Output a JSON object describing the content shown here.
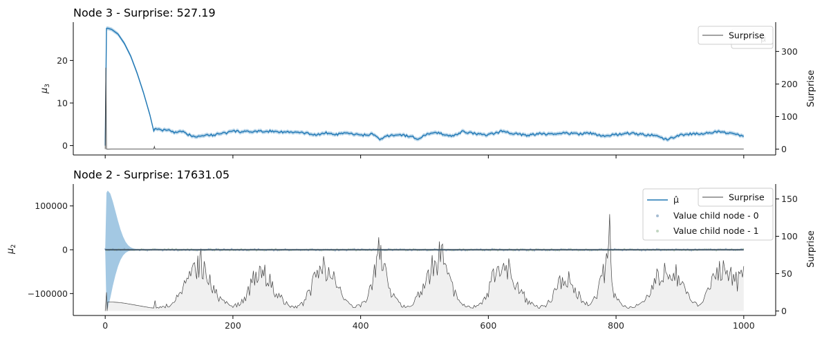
{
  "chart_data": [
    {
      "type": "line",
      "title": "Node 3 - Surprise: 527.19",
      "ylabel": "μ3",
      "ylabel_sub": "3",
      "y2label": "Surprise",
      "xlim": [
        -50,
        1050
      ],
      "ylim": [
        -2.2,
        29
      ],
      "y_ticks": [
        0,
        10,
        20
      ],
      "y_tick_labels": [
        "0",
        "10",
        "20"
      ],
      "y2lim": [
        -18,
        390
      ],
      "y2_ticks": [
        0,
        100,
        200,
        300
      ],
      "y2_tick_labels": [
        "0",
        "100",
        "200",
        "300"
      ],
      "x_ticks": [
        0,
        200,
        400,
        600,
        800,
        1000
      ],
      "show_x_tick_labels": false,
      "legend_left": {
        "labels": [
          "μ̂"
        ],
        "position": "top-right"
      },
      "legend_right": {
        "labels": [
          "Surprise"
        ],
        "position": "top-right"
      },
      "series": [
        {
          "name": "μ̂",
          "color": "#1f77b4",
          "x": [
            0,
            1,
            3,
            10,
            20,
            30,
            40,
            50,
            60,
            70,
            77,
            78,
            90,
            100,
            110,
            120,
            130,
            140,
            150,
            160,
            170,
            180,
            190,
            200,
            220,
            240,
            260,
            280,
            300,
            320,
            330,
            345,
            360,
            380,
            400,
            420,
            430,
            440,
            460,
            480,
            490,
            500,
            520,
            530,
            545,
            560,
            580,
            600,
            620,
            640,
            660,
            680,
            700,
            720,
            740,
            760,
            780,
            790,
            800,
            820,
            840,
            860,
            880,
            900,
            920,
            940,
            960,
            980,
            1000
          ],
          "values": [
            0,
            27.5,
            27.6,
            27.3,
            26.2,
            24.0,
            21.0,
            17.0,
            12.4,
            7.2,
            2.8,
            4.0,
            3.6,
            3.7,
            3.0,
            3.3,
            2.6,
            2.2,
            2.3,
            2.6,
            2.4,
            2.9,
            3.0,
            3.4,
            3.2,
            3.3,
            3.4,
            3.2,
            3.1,
            2.8,
            2.5,
            3.0,
            2.6,
            2.9,
            2.4,
            2.7,
            1.3,
            2.2,
            2.6,
            2.1,
            1.6,
            2.5,
            3.0,
            2.7,
            2.2,
            3.3,
            2.8,
            2.5,
            3.3,
            2.9,
            2.4,
            2.8,
            2.6,
            3.0,
            2.7,
            2.9,
            2.3,
            2.5,
            2.6,
            2.9,
            2.6,
            2.4,
            1.4,
            2.5,
            2.8,
            2.9,
            3.3,
            2.8,
            2.3
          ],
          "band": 0.45
        },
        {
          "name": "Surprise",
          "color": "#444444",
          "axis": "right",
          "x": [
            0,
            1,
            2,
            3,
            5,
            10,
            40,
            76,
            77,
            78,
            100,
            200,
            300,
            400,
            500,
            600,
            700,
            800,
            900,
            1000
          ],
          "values": [
            0,
            250,
            0,
            0.3,
            0.3,
            0.4,
            0.4,
            0.5,
            8,
            0.5,
            0.5,
            0.5,
            0.5,
            0.5,
            0.5,
            0.5,
            0.5,
            0.5,
            0.5,
            0.5
          ]
        }
      ]
    },
    {
      "type": "line",
      "title": "Node 2 - Surprise: 17631.05",
      "ylabel": "μ2",
      "ylabel_sub": "2",
      "y2label": "Surprise",
      "xlim": [
        -50,
        1050
      ],
      "ylim": [
        -150000,
        150000
      ],
      "y_ticks": [
        -100000,
        0,
        100000
      ],
      "y_tick_labels": [
        "−100000",
        "0",
        "100000"
      ],
      "y2lim": [
        -6,
        170
      ],
      "y2_ticks": [
        0,
        50,
        100,
        150
      ],
      "y2_tick_labels": [
        "0",
        "50",
        "100",
        "150"
      ],
      "x_ticks": [
        0,
        200,
        400,
        600,
        800,
        1000
      ],
      "x_tick_labels": [
        "0",
        "200",
        "400",
        "600",
        "800",
        "1000"
      ],
      "legend_left": {
        "labels": [
          "μ̂",
          "Value child node - 0",
          "Value child node - 1"
        ],
        "position": "top-right"
      },
      "legend_right": {
        "labels": [
          "Surprise"
        ],
        "position": "top-right"
      },
      "series": [
        {
          "name": "μ̂",
          "color": "#1f77b4",
          "x": [
            0,
            1000
          ],
          "values": [
            0,
            0
          ]
        },
        {
          "name": "Value child node - 0",
          "color": "#7f9fbf",
          "type": "scatter"
        },
        {
          "name": "Value child node - 1",
          "color": "#a8c4a8",
          "type": "scatter"
        },
        {
          "name": "uncertainty band",
          "color": "#9ec5e1",
          "x": [
            0,
            2,
            4,
            8,
            12,
            16,
            20,
            24,
            28,
            32,
            36,
            40,
            44,
            48,
            52,
            56,
            60
          ],
          "upper": [
            0,
            130000,
            135000,
            128000,
            110000,
            88000,
            66000,
            46000,
            30000,
            18000,
            10000,
            5500,
            3000,
            1600,
            900,
            500,
            0
          ],
          "lower": [
            0,
            -136000,
            -134000,
            -110000,
            -82000,
            -58000,
            -38000,
            -23000,
            -13000,
            -7000,
            -3500,
            -1600,
            -700,
            -300,
            -100,
            -40,
            0
          ]
        },
        {
          "name": "Surprise",
          "color": "#404040",
          "axis": "right",
          "x": [
            0,
            2,
            3,
            4,
            10,
            20,
            30,
            40,
            50,
            60,
            70,
            76,
            78,
            80,
            90,
            100,
            110,
            120,
            130,
            140,
            145,
            150,
            155,
            160,
            170,
            180,
            190,
            200,
            210,
            220,
            230,
            240,
            245,
            250,
            260,
            270,
            280,
            290,
            300,
            310,
            320,
            330,
            340,
            350,
            360,
            370,
            380,
            390,
            400,
            410,
            420,
            425,
            430,
            435,
            440,
            450,
            460,
            470,
            480,
            490,
            500,
            510,
            520,
            525,
            530,
            540,
            550,
            560,
            570,
            580,
            590,
            600,
            610,
            620,
            630,
            640,
            650,
            660,
            670,
            680,
            690,
            700,
            710,
            720,
            730,
            740,
            750,
            760,
            770,
            780,
            785,
            790,
            792,
            795,
            800,
            810,
            820,
            830,
            840,
            850,
            860,
            870,
            880,
            890,
            900,
            910,
            920,
            930,
            940,
            950,
            960,
            970,
            980,
            990,
            1000
          ],
          "values": [
            0,
            25,
            0,
            12,
            12,
            11.5,
            10.5,
            9,
            7.5,
            6,
            4.5,
            4,
            14,
            4,
            5,
            8,
            14,
            26,
            40,
            55,
            68,
            62,
            58,
            42,
            28,
            16,
            10,
            7,
            9,
            18,
            38,
            55,
            60,
            52,
            38,
            22,
            12,
            6,
            5,
            10,
            25,
            48,
            58,
            52,
            40,
            22,
            10,
            6,
            8,
            15,
            40,
            60,
            90,
            65,
            42,
            22,
            10,
            5,
            8,
            22,
            38,
            55,
            62,
            80,
            60,
            38,
            20,
            10,
            5,
            6,
            12,
            28,
            50,
            68,
            58,
            42,
            26,
            15,
            8,
            5,
            8,
            20,
            42,
            48,
            38,
            24,
            12,
            8,
            20,
            50,
            62,
            150,
            75,
            30,
            16,
            6,
            5,
            6,
            10,
            20,
            38,
            55,
            58,
            52,
            40,
            24,
            14,
            8,
            22,
            40,
            62,
            56,
            45,
            38,
            60
          ]
        }
      ]
    }
  ]
}
